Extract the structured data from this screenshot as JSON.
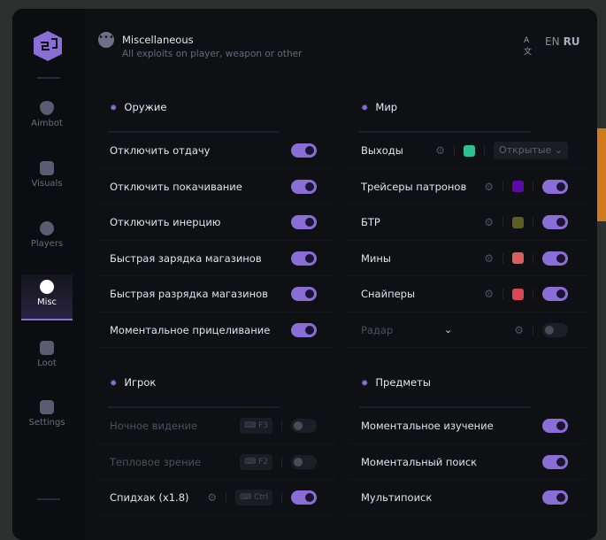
{
  "header": {
    "title": "Miscellaneous",
    "subtitle": "All exploits on player, weapon or other",
    "lang_en": "EN",
    "lang_ru": "RU"
  },
  "sidebar": {
    "items": [
      {
        "label": "Aimbot",
        "icon": "alien-icon"
      },
      {
        "label": "Visuals",
        "icon": "vr-goggles-icon"
      },
      {
        "label": "Players",
        "icon": "users-icon"
      },
      {
        "label": "Misc",
        "icon": "dots-icon",
        "active": true
      },
      {
        "label": "Loot",
        "icon": "briefcase-icon"
      },
      {
        "label": "Settings",
        "icon": "list-icon"
      }
    ]
  },
  "sections": {
    "weapon": {
      "title": "Оружие",
      "rows": [
        {
          "label": "Отключить отдачу",
          "on": true
        },
        {
          "label": "Отключить покачивание",
          "on": true
        },
        {
          "label": "Отключить инерцию",
          "on": true
        },
        {
          "label": "Быстрая зарядка магазинов",
          "on": true
        },
        {
          "label": "Быстрая разрядка магазинов",
          "on": true
        },
        {
          "label": "Моментальное прицеливание",
          "on": true
        }
      ]
    },
    "world": {
      "title": "Мир",
      "rows": [
        {
          "label": "Выходы",
          "color": "#2fc08f",
          "select": "Открытые"
        },
        {
          "label": "Трейсеры патронов",
          "color": "#5a0aa6",
          "on": true
        },
        {
          "label": "БТР",
          "color": "#5c5d25",
          "on": true
        },
        {
          "label": "Мины",
          "color": "#d9605f",
          "on": true
        },
        {
          "label": "Снайперы",
          "color": "#d94752",
          "on": true
        },
        {
          "label": "Радар",
          "on": false,
          "disabled": true
        }
      ]
    },
    "player": {
      "title": "Игрок",
      "rows": [
        {
          "label": "Ночное видение",
          "key": "F3",
          "on": false,
          "disabled": true
        },
        {
          "label": "Тепловое зрение",
          "key": "F2",
          "on": false,
          "disabled": true
        },
        {
          "label": "Спидхак (x1.8)",
          "key": "Ctrl",
          "on": true
        }
      ]
    },
    "items": {
      "title": "Предметы",
      "rows": [
        {
          "label": "Моментальное изучение",
          "on": true
        },
        {
          "label": "Моментальный поиск",
          "on": true
        },
        {
          "label": "Мультипоиск",
          "on": true
        }
      ]
    }
  },
  "colors": {
    "accent": "#8b6dd6",
    "background": "#0f1014"
  }
}
